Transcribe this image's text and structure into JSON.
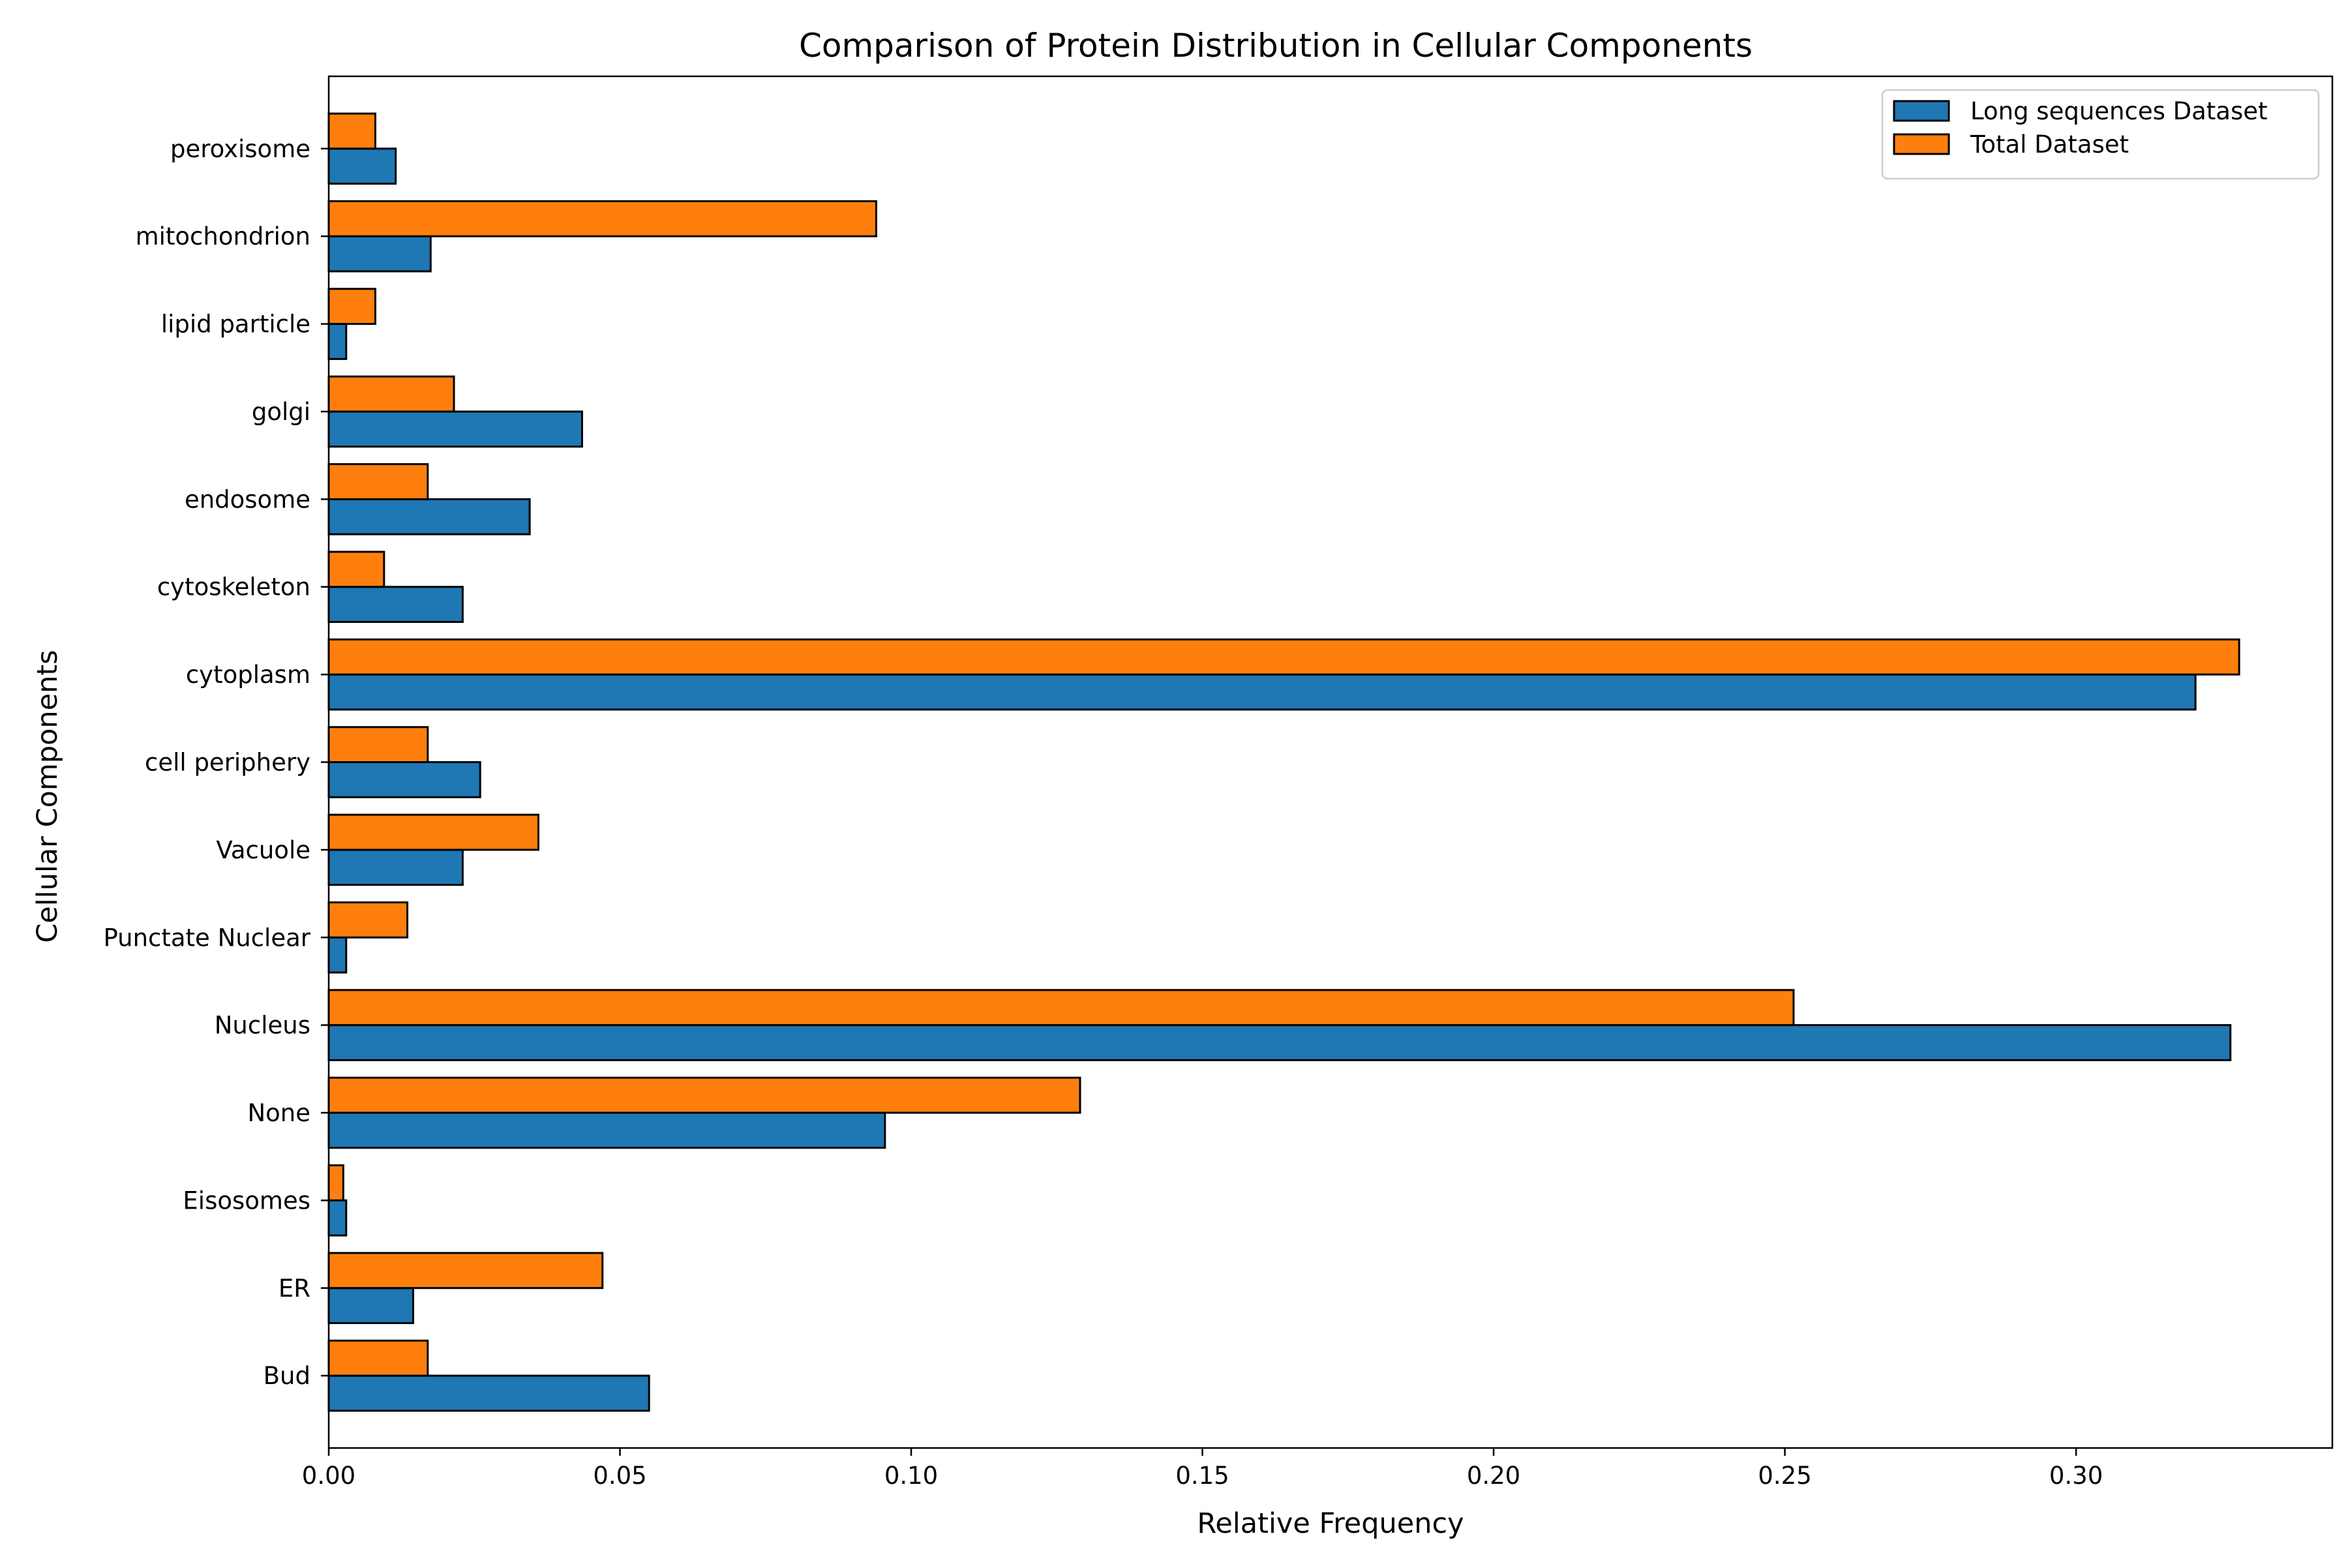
{
  "chart_data": {
    "type": "bar",
    "orientation": "horizontal",
    "title": "Comparison of Protein Distribution in Cellular Components",
    "xlabel": "Relative Frequency",
    "ylabel": "Cellular Components",
    "categories": [
      "Bud",
      "ER",
      "Eisosomes",
      "None",
      "Nucleus",
      "Punctate Nuclear",
      "Vacuole",
      "cell periphery",
      "cytoplasm",
      "cytoskeleton",
      "endosome",
      "golgi",
      "lipid particle",
      "mitochondrion",
      "peroxisome"
    ],
    "series": [
      {
        "name": "Long sequences Dataset",
        "color": "#1f77b4",
        "values": [
          0.055,
          0.0145,
          0.003,
          0.0955,
          0.3265,
          0.003,
          0.023,
          0.026,
          0.3205,
          0.023,
          0.0345,
          0.0435,
          0.003,
          0.0175,
          0.0115
        ]
      },
      {
        "name": "Total Dataset",
        "color": "#ff7f0e",
        "values": [
          0.017,
          0.047,
          0.0025,
          0.129,
          0.2515,
          0.0135,
          0.036,
          0.017,
          0.328,
          0.0095,
          0.017,
          0.0215,
          0.008,
          0.094,
          0.008
        ]
      }
    ],
    "xlim": [
      0,
      0.344
    ],
    "xticks": [
      "0.00",
      "0.05",
      "0.10",
      "0.15",
      "0.20",
      "0.25",
      "0.30"
    ],
    "grid": false,
    "legend_position": "top-right"
  }
}
